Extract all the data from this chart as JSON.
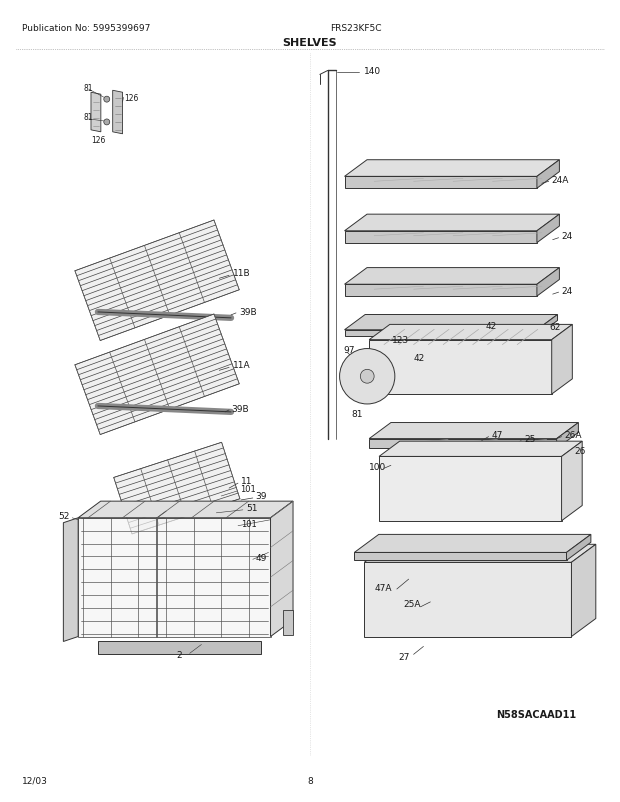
{
  "title": "SHELVES",
  "pub_no": "Publication No: 5995399697",
  "model": "FRS23KF5C",
  "diagram_code": "N58SACAAD11",
  "date": "12/03",
  "page": "8",
  "bg_color": "#ffffff",
  "text_color": "#1a1a1a",
  "line_color": "#333333",
  "grid_color": "#444444",
  "shelf_face": "#e8e8e8",
  "shelf_top": "#d5d5d5",
  "shelf_side": "#c0c0c0",
  "bin_face": "#ececec",
  "bin_top": "#d8d8d8",
  "bin_side": "#c8c8c8"
}
